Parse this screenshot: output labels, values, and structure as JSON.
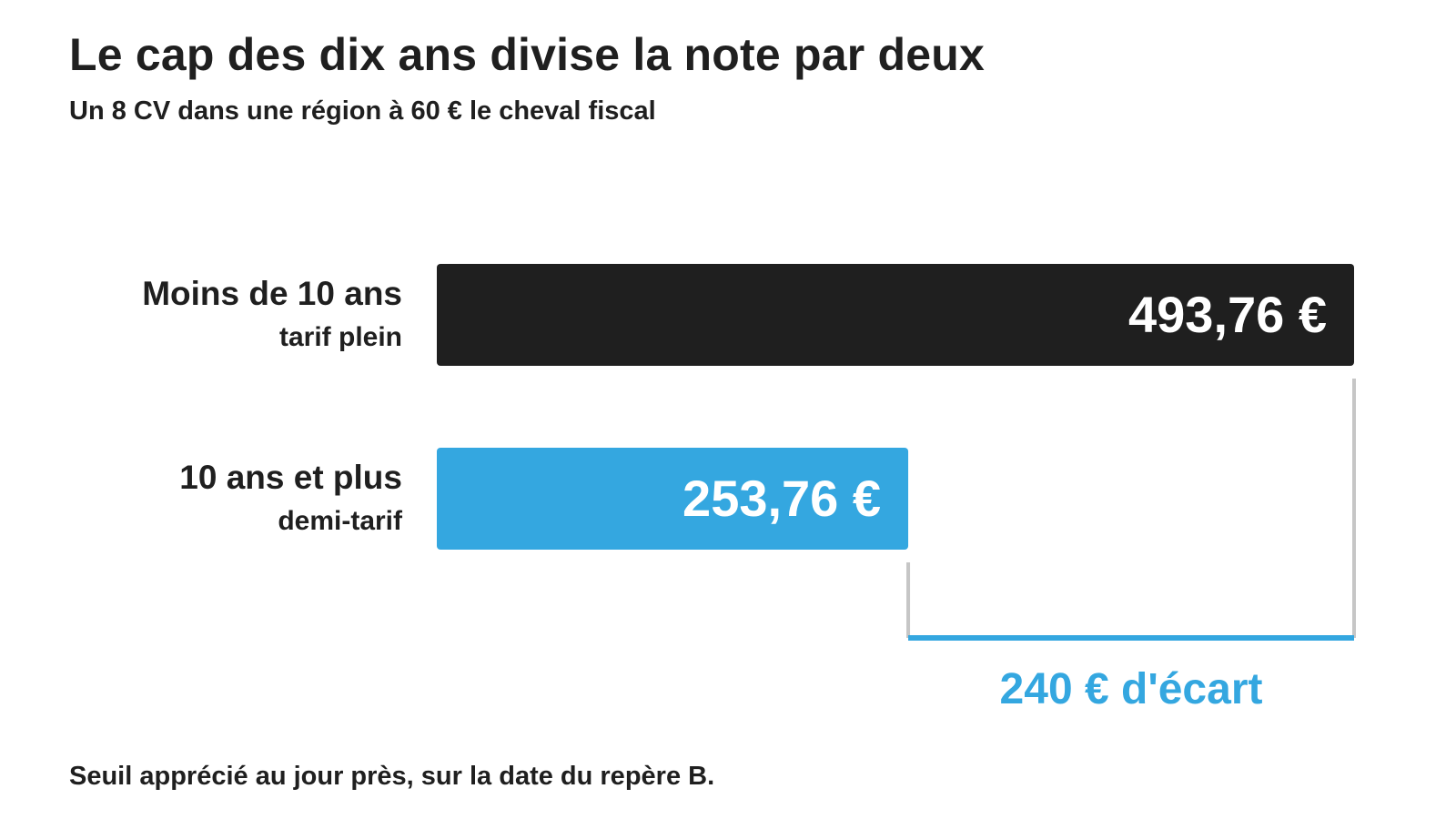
{
  "chart_data": {
    "type": "bar",
    "orientation": "horizontal",
    "title": "Le cap des dix ans divise la note par deux",
    "subtitle": "Un 8 CV dans une région à 60 € le cheval fiscal",
    "categories": [
      {
        "label": "Moins de 10 ans",
        "sublabel": "tarif plein",
        "value": 493.76,
        "value_label": "493,76 €",
        "color": "#1f1f1f"
      },
      {
        "label": "10 ans et plus",
        "sublabel": "demi-tarif",
        "value": 253.76,
        "value_label": "253,76 €",
        "color": "#34a7e0"
      }
    ],
    "difference": {
      "value": 240,
      "label": "240 € d'écart",
      "color": "#34a7e0"
    },
    "xlim": [
      0,
      493.76
    ],
    "axis_visible": false,
    "grid": false,
    "legend": "none",
    "footnote": "Seuil apprécié au jour près, sur la date du repère B."
  }
}
